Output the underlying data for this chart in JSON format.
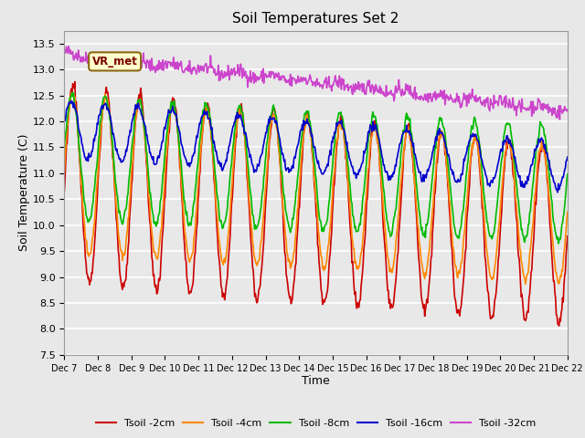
{
  "title": "Soil Temperatures Set 2",
  "xlabel": "Time",
  "ylabel": "Soil Temperature (C)",
  "ylim": [
    7.5,
    13.75
  ],
  "yticks": [
    7.5,
    8.0,
    8.5,
    9.0,
    9.5,
    10.0,
    10.5,
    11.0,
    11.5,
    12.0,
    12.5,
    13.0,
    13.5
  ],
  "colors": {
    "Tsoil_2cm": "#cc0000",
    "Tsoil_4cm": "#ff8800",
    "Tsoil_8cm": "#00bb00",
    "Tsoil_16cm": "#0000cc",
    "Tsoil_32cm": "#cc44cc"
  },
  "labels": [
    "Tsoil -2cm",
    "Tsoil -4cm",
    "Tsoil -8cm",
    "Tsoil -16cm",
    "Tsoil -32cm"
  ],
  "annotation_text": "VR_met",
  "bg_color": "#e8e8e8",
  "linewidth": 1.2,
  "n_points": 720,
  "days": 15
}
